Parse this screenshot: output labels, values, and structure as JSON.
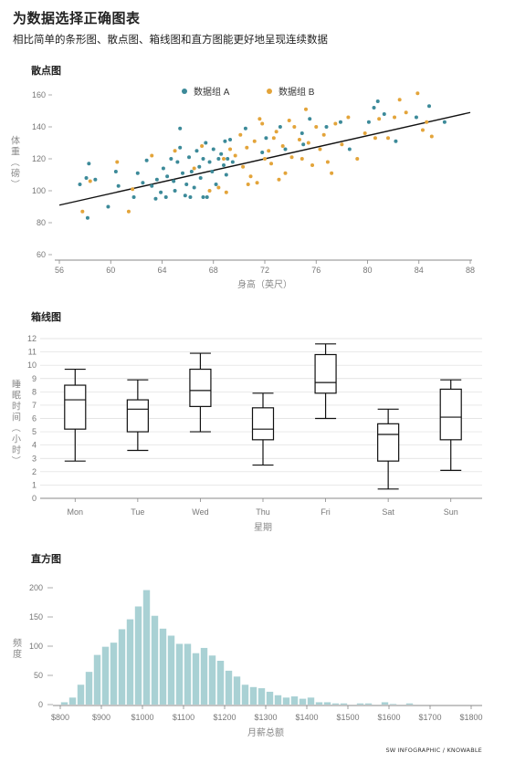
{
  "header": {
    "title": "为数据选择正确图表",
    "subtitle": "相比简单的条形图、散点图、箱线图和直方图能更好地呈现连续数据"
  },
  "credit": "SW INFOGRAPHIC / KNOWABLE",
  "colors": {
    "group_a": "#3c8a99",
    "group_b": "#e3a43a",
    "hist_bar": "#a9d1d4",
    "ink": "#111111",
    "axis": "#888888"
  },
  "chart_data": [
    {
      "type": "scatter",
      "title": "散点图",
      "xlabel": "身高（英尺）",
      "ylabel": "体重（磅）",
      "xlim": [
        56,
        88
      ],
      "ylim": [
        60,
        160
      ],
      "xticks": [
        56,
        60,
        64,
        68,
        72,
        76,
        80,
        84,
        88
      ],
      "yticks": [
        60,
        80,
        100,
        120,
        140,
        160
      ],
      "legend": "top-center",
      "trendline": {
        "x": [
          56,
          88
        ],
        "y": [
          91,
          149
        ]
      },
      "series": [
        {
          "name": "数据组 A",
          "color": "#3c8a99",
          "points": [
            [
              57.6,
              104
            ],
            [
              58.1,
              108
            ],
            [
              58.3,
              117
            ],
            [
              58.8,
              107
            ],
            [
              58.2,
              83
            ],
            [
              59.8,
              90
            ],
            [
              60.4,
              112
            ],
            [
              60.6,
              103
            ],
            [
              61.8,
              96
            ],
            [
              62.1,
              111
            ],
            [
              62.5,
              105
            ],
            [
              62.8,
              119
            ],
            [
              63.2,
              103
            ],
            [
              63.5,
              95
            ],
            [
              63.6,
              107
            ],
            [
              63.9,
              99
            ],
            [
              64.1,
              114
            ],
            [
              64.3,
              96
            ],
            [
              64.4,
              109
            ],
            [
              64.7,
              120
            ],
            [
              64.9,
              106
            ],
            [
              65.0,
              100
            ],
            [
              65.2,
              118
            ],
            [
              65.4,
              127
            ],
            [
              65.6,
              111
            ],
            [
              65.8,
              97
            ],
            [
              65.9,
              104
            ],
            [
              66.1,
              121
            ],
            [
              66.3,
              112
            ],
            [
              66.5,
              102
            ],
            [
              66.7,
              125
            ],
            [
              66.9,
              115
            ],
            [
              67.0,
              108
            ],
            [
              67.2,
              120
            ],
            [
              67.4,
              130
            ],
            [
              67.5,
              96
            ],
            [
              67.7,
              118
            ],
            [
              67.9,
              112
            ],
            [
              68.0,
              126
            ],
            [
              68.2,
              104
            ],
            [
              68.4,
              120
            ],
            [
              68.6,
              123
            ],
            [
              68.8,
              116
            ],
            [
              68.9,
              131
            ],
            [
              69.1,
              120
            ],
            [
              69.3,
              132
            ],
            [
              69.5,
              118
            ],
            [
              65.4,
              139
            ],
            [
              66.2,
              96
            ],
            [
              67.2,
              96
            ],
            [
              69.0,
              110
            ],
            [
              70.5,
              139
            ],
            [
              72.1,
              133
            ],
            [
              73.2,
              140
            ],
            [
              75.0,
              129
            ],
            [
              75.5,
              145
            ],
            [
              76.8,
              140
            ],
            [
              77.9,
              143
            ],
            [
              80.1,
              143
            ],
            [
              81.3,
              148
            ],
            [
              82.2,
              131
            ],
            [
              83.8,
              146
            ],
            [
              84.8,
              153
            ],
            [
              86.0,
              143
            ],
            [
              80.8,
              156
            ],
            [
              78.6,
              126
            ],
            [
              74.9,
              136
            ],
            [
              71.8,
              124
            ],
            [
              73.6,
              126
            ],
            [
              80.5,
              152
            ]
          ]
        },
        {
          "name": "数据组 B",
          "color": "#e3a43a",
          "points": [
            [
              57.8,
              87
            ],
            [
              58.4,
              106
            ],
            [
              60.5,
              118
            ],
            [
              61.4,
              87
            ],
            [
              61.7,
              101
            ],
            [
              63.2,
              122
            ],
            [
              65.0,
              125
            ],
            [
              66.5,
              114
            ],
            [
              67.1,
              128
            ],
            [
              67.7,
              100
            ],
            [
              68.4,
              102
            ],
            [
              68.8,
              120
            ],
            [
              69.3,
              126
            ],
            [
              69.7,
              122
            ],
            [
              70.1,
              135
            ],
            [
              70.3,
              115
            ],
            [
              70.6,
              127
            ],
            [
              70.9,
              109
            ],
            [
              71.2,
              131
            ],
            [
              71.4,
              105
            ],
            [
              71.8,
              142
            ],
            [
              72.0,
              120
            ],
            [
              72.3,
              125
            ],
            [
              72.5,
              117
            ],
            [
              72.9,
              137
            ],
            [
              73.1,
              107
            ],
            [
              73.4,
              128
            ],
            [
              73.6,
              111
            ],
            [
              73.9,
              144
            ],
            [
              74.1,
              121
            ],
            [
              74.3,
              140
            ],
            [
              74.7,
              132
            ],
            [
              74.9,
              120
            ],
            [
              75.2,
              151
            ],
            [
              75.4,
              130
            ],
            [
              75.7,
              116
            ],
            [
              76.0,
              140
            ],
            [
              76.3,
              126
            ],
            [
              76.6,
              135
            ],
            [
              77.2,
              111
            ],
            [
              77.5,
              142
            ],
            [
              78.0,
              129
            ],
            [
              78.5,
              146
            ],
            [
              79.2,
              120
            ],
            [
              79.8,
              136
            ],
            [
              80.6,
              133
            ],
            [
              81.6,
              133
            ],
            [
              82.1,
              146
            ],
            [
              83.0,
              149
            ],
            [
              83.9,
              161
            ],
            [
              84.3,
              138
            ],
            [
              85.0,
              134
            ],
            [
              84.6,
              143
            ],
            [
              82.5,
              157
            ],
            [
              71.6,
              145
            ],
            [
              69.0,
              99
            ],
            [
              70.7,
              104
            ],
            [
              72.7,
              133
            ],
            [
              76.9,
              118
            ],
            [
              80.9,
              145
            ]
          ]
        }
      ]
    },
    {
      "type": "box",
      "title": "箱线图",
      "xlabel": "星期",
      "ylabel": "睡眠时间（小时）",
      "ylim": [
        0,
        12
      ],
      "yticks": [
        0,
        1,
        2,
        3,
        4,
        5,
        6,
        7,
        8,
        9,
        10,
        11,
        12
      ],
      "categories": [
        "Mon",
        "Tue",
        "Wed",
        "Thu",
        "Fri",
        "Sat",
        "Sun"
      ],
      "boxes": [
        {
          "min": 2.8,
          "q1": 5.2,
          "median": 7.4,
          "q3": 8.5,
          "max": 9.7
        },
        {
          "min": 3.6,
          "q1": 5.0,
          "median": 6.7,
          "q3": 7.4,
          "max": 8.9
        },
        {
          "min": 5.0,
          "q1": 6.9,
          "median": 8.1,
          "q3": 9.7,
          "max": 10.9
        },
        {
          "min": 2.5,
          "q1": 4.4,
          "median": 5.2,
          "q3": 6.8,
          "max": 7.9
        },
        {
          "min": 6.0,
          "q1": 7.9,
          "median": 8.7,
          "q3": 10.8,
          "max": 11.6
        },
        {
          "min": 0.7,
          "q1": 2.8,
          "median": 4.8,
          "q3": 5.6,
          "max": 6.7
        },
        {
          "min": 2.1,
          "q1": 4.4,
          "median": 6.1,
          "q3": 8.2,
          "max": 8.9
        }
      ]
    },
    {
      "type": "histogram",
      "title": "直方图",
      "xlabel": "月薪总额",
      "ylabel": "频度",
      "xlim": [
        800,
        1800
      ],
      "ylim": [
        0,
        200
      ],
      "yticks": [
        0,
        50,
        100,
        150,
        200
      ],
      "xticks": [
        800,
        900,
        1000,
        1100,
        1200,
        1300,
        1400,
        1500,
        1600,
        1700,
        1800
      ],
      "xtick_labels": [
        "$800",
        "$900",
        "$1000",
        "$1100",
        "$1200",
        "$1300",
        "$1400",
        "$1500",
        "$1600",
        "$1700",
        "$1800"
      ],
      "bin_start": 800,
      "bin_width": 20,
      "values": [
        4,
        12,
        34,
        56,
        85,
        99,
        106,
        129,
        146,
        168,
        196,
        152,
        130,
        118,
        104,
        104,
        88,
        97,
        84,
        75,
        58,
        48,
        34,
        30,
        28,
        22,
        16,
        12,
        14,
        10,
        12,
        4,
        4,
        2,
        2,
        0,
        2,
        2,
        0,
        4,
        1,
        0,
        2,
        0,
        0,
        0,
        0,
        0,
        0,
        0
      ]
    }
  ]
}
